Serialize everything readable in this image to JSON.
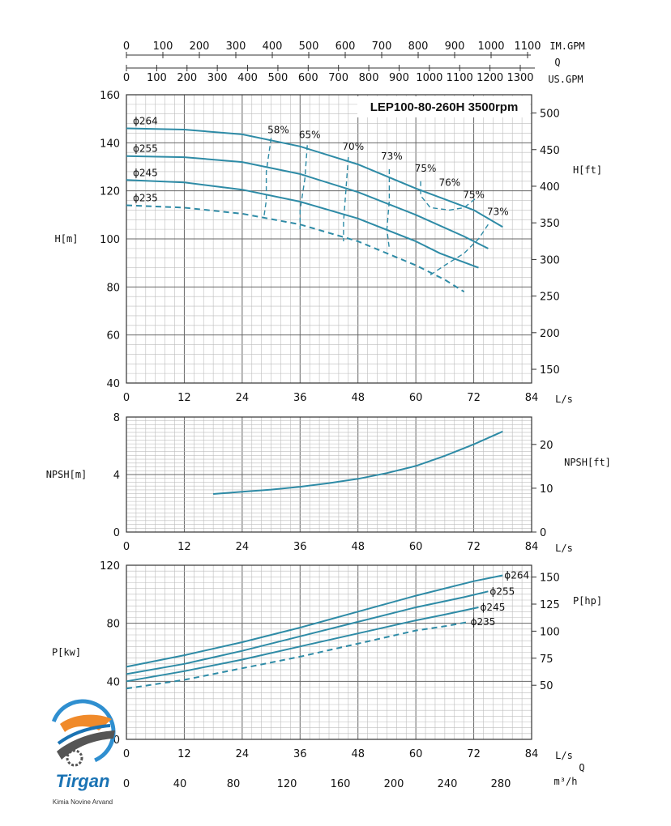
{
  "colors": {
    "curve": "#2e8ba6",
    "grid_major": "#666666",
    "grid_minor": "#bdbdbd",
    "text": "#111111"
  },
  "chart_data": [
    {
      "type": "line",
      "title": "LEP100-80-260H 3500rpm",
      "xlabel": "L/s",
      "ylabel": "H[m]",
      "y2label": "H[ft]",
      "xlim": [
        0,
        84
      ],
      "ylim": [
        40,
        160
      ],
      "x_ticks": [
        0,
        12,
        24,
        36,
        48,
        60,
        72,
        84
      ],
      "y_ticks": [
        40,
        60,
        80,
        100,
        120,
        140,
        160
      ],
      "y2_ticks": [
        150,
        200,
        250,
        300,
        350,
        400,
        450,
        500
      ],
      "top_axes": {
        "imperial_label": "IM.GPM",
        "q_label": "Q",
        "us_label": "US.GPM",
        "im_ticks": [
          0,
          100,
          200,
          300,
          400,
          500,
          600,
          700,
          800,
          900,
          1000,
          1100
        ],
        "us_ticks": [
          0,
          100,
          200,
          300,
          400,
          500,
          600,
          700,
          800,
          900,
          1000,
          1100,
          1200,
          1300
        ]
      },
      "grid": true,
      "series": [
        {
          "name": "ϕ264",
          "dashed": false,
          "x": [
            0,
            12,
            24,
            36,
            48,
            60,
            72,
            78
          ],
          "y": [
            146,
            145.5,
            143.5,
            138.5,
            131,
            121,
            112,
            105
          ]
        },
        {
          "name": "ϕ255",
          "dashed": false,
          "x": [
            0,
            12,
            24,
            36,
            48,
            60,
            70,
            75
          ],
          "y": [
            134.5,
            134,
            132,
            127,
            119.5,
            110,
            101,
            96
          ]
        },
        {
          "name": "ϕ245",
          "dashed": false,
          "x": [
            0,
            12,
            24,
            36,
            48,
            60,
            65,
            73
          ],
          "y": [
            124.5,
            123.5,
            120.5,
            115.5,
            108.5,
            99,
            94,
            88
          ]
        },
        {
          "name": "ϕ235",
          "dashed": true,
          "x": [
            0,
            12,
            24,
            36,
            48,
            60,
            66,
            70
          ],
          "y": [
            114,
            113,
            110.5,
            106,
            99,
            89,
            83,
            78
          ]
        }
      ],
      "efficiency_labels": [
        {
          "label": "58%",
          "x": 31.5,
          "y": 144
        },
        {
          "label": "65%",
          "x": 38,
          "y": 142
        },
        {
          "label": "70%",
          "x": 47,
          "y": 137
        },
        {
          "label": "73%",
          "x": 55,
          "y": 133
        },
        {
          "label": "75%",
          "x": 62,
          "y": 128
        },
        {
          "label": "76%",
          "x": 67,
          "y": 122
        },
        {
          "label": "75%",
          "x": 72,
          "y": 117
        },
        {
          "label": "73%",
          "x": 77,
          "y": 110
        }
      ],
      "efficiency_contours": [
        {
          "x": [
            30,
            29,
            29,
            28.5
          ],
          "y": [
            142,
            128,
            116,
            109
          ]
        },
        {
          "x": [
            37.5,
            37,
            36,
            36
          ],
          "y": [
            139,
            125,
            112,
            104
          ]
        },
        {
          "x": [
            46,
            45.5,
            45,
            45
          ],
          "y": [
            134,
            120,
            107,
            99
          ]
        },
        {
          "x": [
            54.5,
            54.5,
            54,
            54.5
          ],
          "y": [
            129,
            116,
            104,
            96
          ]
        },
        {
          "x": [
            61,
            61,
            63,
            67,
            70,
            72.5
          ],
          "y": [
            124,
            118,
            113,
            112,
            113,
            117
          ]
        },
        {
          "x": [
            63,
            66,
            70,
            73,
            75
          ],
          "y": [
            85,
            89,
            94,
            100,
            106
          ]
        }
      ]
    },
    {
      "type": "line",
      "xlabel": "L/s",
      "ylabel": "NPSH[m]",
      "y2label": "NPSH[ft]",
      "xlim": [
        0,
        84
      ],
      "ylim": [
        0,
        8
      ],
      "x_ticks": [
        0,
        12,
        24,
        36,
        48,
        60,
        72,
        84
      ],
      "y_ticks": [
        0,
        4,
        8
      ],
      "y2_ticks": [
        0,
        10,
        20
      ],
      "grid": true,
      "series": [
        {
          "name": "",
          "dashed": false,
          "x": [
            18,
            24,
            30,
            36,
            42,
            48,
            54,
            60,
            66,
            72,
            78
          ],
          "y": [
            2.65,
            2.8,
            2.95,
            3.15,
            3.4,
            3.7,
            4.1,
            4.6,
            5.3,
            6.1,
            7.0
          ]
        }
      ]
    },
    {
      "type": "line",
      "xlabel": "L/s",
      "ylabel": "P[kw]",
      "y2label": "P[hp]",
      "xlim": [
        0,
        84
      ],
      "ylim": [
        0,
        120
      ],
      "x_ticks": [
        0,
        12,
        24,
        36,
        48,
        60,
        72,
        84
      ],
      "y_ticks": [
        0,
        40,
        80,
        120
      ],
      "y2_ticks": [
        50,
        75,
        100,
        125,
        150
      ],
      "bottom_axis": {
        "label": "Q",
        "unit": "m³/h",
        "ticks": [
          0,
          40,
          80,
          120,
          160,
          200,
          240,
          280
        ]
      },
      "grid": true,
      "series": [
        {
          "name": "ϕ264",
          "dashed": false,
          "x": [
            0,
            12,
            24,
            36,
            48,
            60,
            72,
            78
          ],
          "y": [
            50,
            58,
            67,
            77,
            88,
            99,
            109,
            113
          ]
        },
        {
          "name": "ϕ255",
          "dashed": false,
          "x": [
            0,
            12,
            24,
            36,
            48,
            60,
            70,
            75
          ],
          "y": [
            45,
            52,
            61,
            71,
            81,
            91,
            98,
            102
          ]
        },
        {
          "name": "ϕ245",
          "dashed": false,
          "x": [
            0,
            12,
            24,
            36,
            48,
            60,
            66,
            73
          ],
          "y": [
            40,
            47,
            55,
            64,
            73,
            82,
            86,
            91
          ]
        },
        {
          "name": "ϕ235",
          "dashed": true,
          "x": [
            0,
            12,
            24,
            36,
            48,
            60,
            66,
            71
          ],
          "y": [
            35,
            41,
            49,
            57,
            66,
            75,
            78,
            81
          ]
        }
      ]
    }
  ],
  "logo": {
    "name": "Tirgan",
    "tagline": "Kimia Novine Arvand"
  }
}
